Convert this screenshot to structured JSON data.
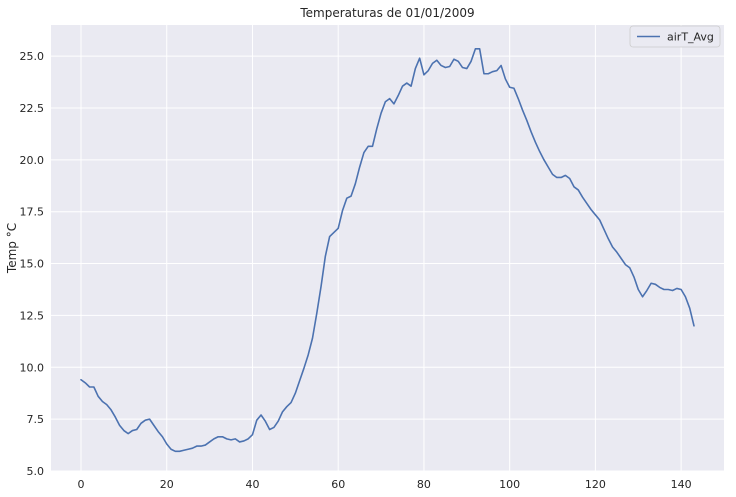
{
  "chart_data": {
    "type": "line",
    "title": "Temperaturas de 01/01/2009",
    "xlabel": "",
    "ylabel": "Temp °C",
    "xlim": [
      -7,
      150
    ],
    "ylim": [
      5.0,
      26.5
    ],
    "xticks": [
      0,
      20,
      40,
      60,
      80,
      100,
      120,
      140
    ],
    "yticks": [
      5.0,
      7.5,
      10.0,
      12.5,
      15.0,
      17.5,
      20.0,
      22.5,
      25.0
    ],
    "ytick_labels": [
      "5.0",
      "7.5",
      "10.0",
      "12.5",
      "15.0",
      "17.5",
      "20.0",
      "22.5",
      "25.0"
    ],
    "grid": true,
    "legend_position": "top-right",
    "colors": {
      "background": "#eaeaf2",
      "grid": "#ffffff",
      "line": "#4c72b0"
    },
    "series": [
      {
        "name": "airT_Avg",
        "x_start": 0,
        "x_step": 1,
        "values": [
          9.4,
          9.25,
          9.05,
          9.05,
          8.6,
          8.35,
          8.2,
          7.95,
          7.6,
          7.2,
          6.95,
          6.8,
          6.95,
          7.0,
          7.3,
          7.45,
          7.5,
          7.2,
          6.9,
          6.65,
          6.3,
          6.05,
          5.95,
          5.95,
          6.0,
          6.05,
          6.1,
          6.2,
          6.2,
          6.25,
          6.4,
          6.55,
          6.65,
          6.65,
          6.55,
          6.5,
          6.55,
          6.4,
          6.45,
          6.55,
          6.75,
          7.45,
          7.7,
          7.4,
          7.0,
          7.1,
          7.4,
          7.85,
          8.1,
          8.3,
          8.75,
          9.35,
          9.95,
          10.6,
          11.4,
          12.6,
          13.9,
          15.35,
          16.3,
          16.5,
          16.7,
          17.55,
          18.15,
          18.25,
          18.85,
          19.65,
          20.35,
          20.65,
          20.65,
          21.5,
          22.25,
          22.8,
          22.95,
          22.7,
          23.1,
          23.55,
          23.7,
          23.55,
          24.4,
          24.9,
          24.1,
          24.3,
          24.65,
          24.8,
          24.55,
          24.45,
          24.5,
          24.85,
          24.75,
          24.45,
          24.4,
          24.75,
          25.35,
          25.35,
          24.15,
          24.15,
          24.25,
          24.3,
          24.55,
          23.9,
          23.5,
          23.45,
          22.95,
          22.4,
          21.9,
          21.35,
          20.85,
          20.4,
          20.0,
          19.65,
          19.3,
          19.15,
          19.15,
          19.25,
          19.1,
          18.7,
          18.55,
          18.2,
          17.9,
          17.6,
          17.35,
          17.1,
          16.65,
          16.2,
          15.8,
          15.55,
          15.25,
          14.95,
          14.8,
          14.35,
          13.75,
          13.4,
          13.7,
          14.05,
          14.0,
          13.85,
          13.75,
          13.75,
          13.7,
          13.8,
          13.75,
          13.4,
          12.85,
          12.0
        ]
      }
    ]
  }
}
